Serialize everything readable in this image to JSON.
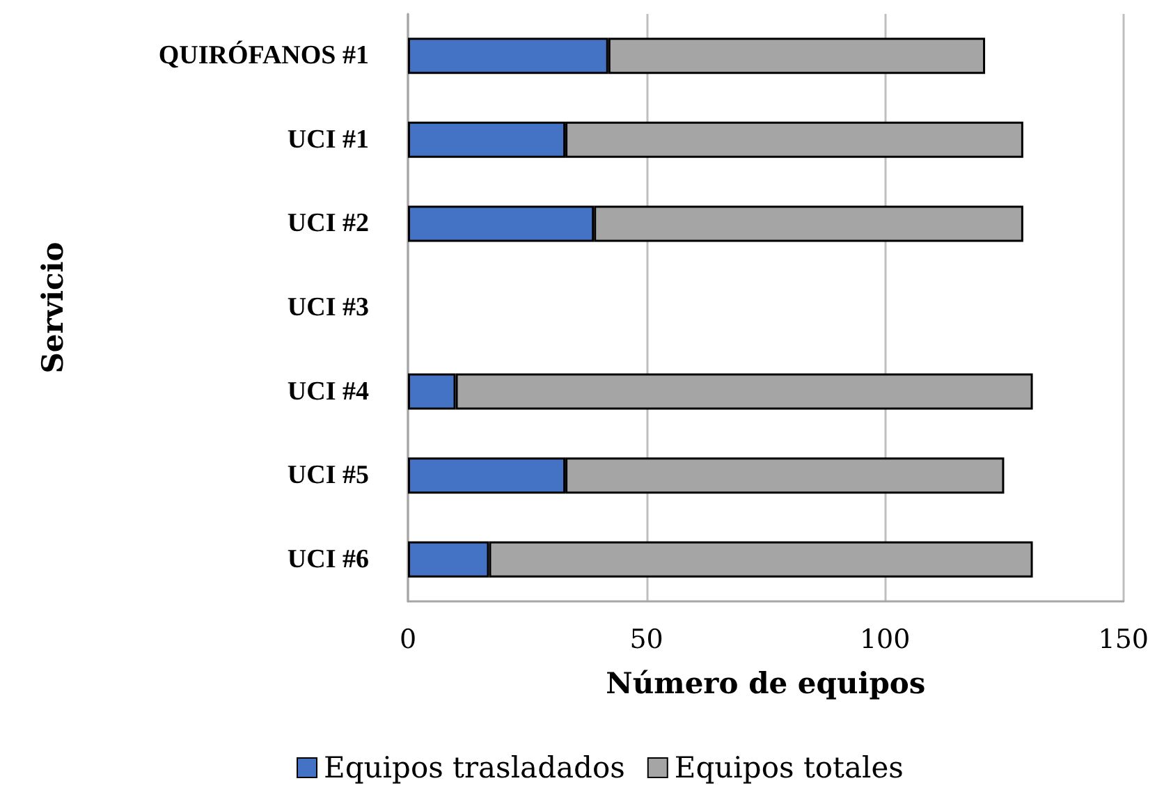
{
  "chart_data": {
    "type": "bar",
    "orientation": "horizontal",
    "stacked": true,
    "xlabel": "Número de equipos",
    "ylabel": "Servicio",
    "categories": [
      "QUIRÓFANOS #1",
      "UCI #1",
      "UCI #2",
      "UCI #3",
      "UCI #4",
      "UCI #5",
      "UCI #6"
    ],
    "series": [
      {
        "name": "Equipos trasladados",
        "color": "#4472c4",
        "values": [
          42,
          33,
          39,
          null,
          10,
          33,
          17
        ]
      },
      {
        "name": "Equipos totales",
        "color": "#a5a5a5",
        "values": [
          79,
          96,
          90,
          null,
          121,
          92,
          114
        ]
      }
    ],
    "xlim": [
      0,
      150
    ],
    "xticks": [
      0,
      50,
      100,
      150
    ],
    "grid": "x",
    "legend": "bottom"
  }
}
